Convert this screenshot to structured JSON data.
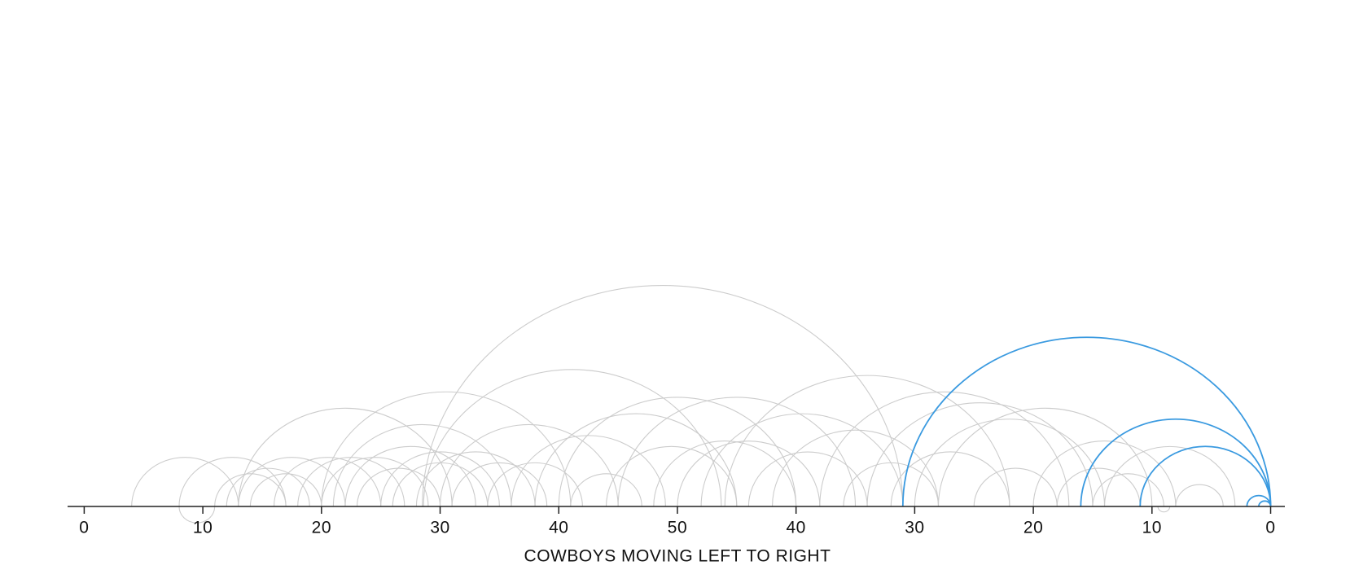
{
  "chart_data": {
    "type": "arc",
    "xlabel": "COWBOYS MOVING LEFT TO RIGHT",
    "xlim": [
      -1.4,
      101.2
    ],
    "xticks": [
      0,
      10,
      20,
      30,
      40,
      50,
      {
        "value": 60,
        "label": "40"
      },
      {
        "value": 70,
        "label": "30"
      },
      {
        "value": 80,
        "label": "20"
      },
      {
        "value": 90,
        "label": "10"
      },
      {
        "value": 100,
        "label": "0"
      }
    ],
    "series": [
      {
        "color": "#cccccc",
        "plays": [
          [
            4,
            13
          ],
          [
            8,
            17
          ],
          [
            11,
            17
          ],
          [
            12,
            19
          ],
          [
            13,
            22
          ],
          [
            13,
            31
          ],
          [
            14,
            20
          ],
          [
            16,
            25
          ],
          [
            18,
            27
          ],
          [
            20,
            41
          ],
          [
            20,
            29
          ],
          [
            21,
            36
          ],
          [
            22,
            33
          ],
          [
            23,
            30
          ],
          [
            25,
            35
          ],
          [
            26,
            34
          ],
          [
            28,
            38
          ],
          [
            28.5,
            69
          ],
          [
            28.6,
            53.7
          ],
          [
            30,
            45
          ],
          [
            31,
            39
          ],
          [
            34,
            42
          ],
          [
            36,
            49
          ],
          [
            38,
            55
          ],
          [
            40,
            60
          ],
          [
            41,
            47
          ],
          [
            44,
            55
          ],
          [
            45,
            65
          ],
          [
            48,
            60
          ],
          [
            50,
            62
          ],
          [
            52,
            69
          ],
          [
            54,
            78
          ],
          [
            56,
            66
          ],
          [
            58,
            72
          ],
          [
            62,
            83
          ],
          [
            64,
            72
          ],
          [
            66,
            85
          ],
          [
            68,
            78
          ],
          [
            70,
            86
          ],
          [
            72,
            90
          ],
          [
            75,
            82
          ],
          [
            80,
            92
          ],
          [
            82,
            89
          ],
          [
            85,
            91
          ],
          [
            86,
            97
          ],
          [
            92,
            96
          ],
          [
            11,
            8
          ],
          [
            91.5,
            90.5
          ]
        ]
      },
      {
        "color": "#3a9ae0",
        "plays": [
          [
            69,
            100
          ],
          [
            84,
            100
          ],
          [
            89,
            100
          ],
          [
            98,
            100
          ],
          [
            99,
            100
          ]
        ]
      }
    ]
  }
}
